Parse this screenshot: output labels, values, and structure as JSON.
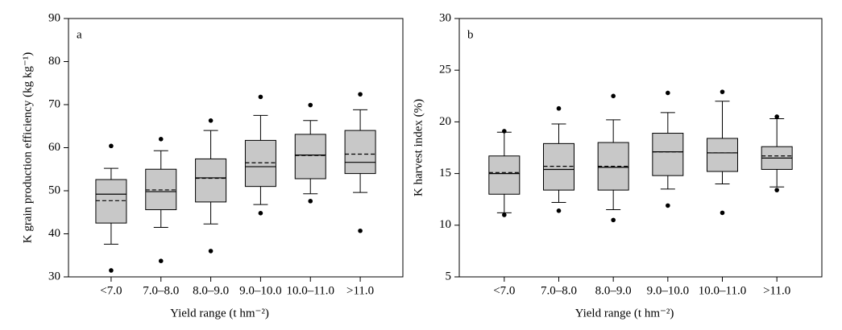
{
  "chart_data": [
    {
      "type": "box",
      "panel_label": "a",
      "ylabel": "K grain production efficiency (kg kg⁻¹)",
      "xlabel": "Yield range (t hm⁻²)",
      "categories": [
        "<7.0",
        "7.0–8.0",
        "8.0–9.0",
        "9.0–10.0",
        "10.0–11.0",
        ">11.0"
      ],
      "ylim": [
        30,
        90
      ],
      "yticks": [
        30,
        40,
        50,
        60,
        70,
        80,
        90
      ],
      "color": "#c8c8c8",
      "boxes": [
        {
          "whisker_low": 37.6,
          "q1": 42.5,
          "median": 49.2,
          "mean": 47.7,
          "q3": 52.6,
          "whisker_high": 55.2,
          "outliers": [
            31.5,
            60.4
          ]
        },
        {
          "whisker_low": 41.5,
          "q1": 45.6,
          "median": 49.8,
          "mean": 50.2,
          "q3": 55.0,
          "whisker_high": 59.3,
          "outliers": [
            33.7,
            62.0
          ]
        },
        {
          "whisker_low": 42.3,
          "q1": 47.4,
          "median": 53.0,
          "mean": 52.9,
          "q3": 57.4,
          "whisker_high": 64.0,
          "outliers": [
            36.0,
            66.3
          ]
        },
        {
          "whisker_low": 46.8,
          "q1": 51.0,
          "median": 55.6,
          "mean": 56.5,
          "q3": 61.7,
          "whisker_high": 67.5,
          "outliers": [
            44.8,
            71.8
          ]
        },
        {
          "whisker_low": 49.3,
          "q1": 52.8,
          "median": 58.3,
          "mean": 58.2,
          "q3": 63.1,
          "whisker_high": 66.3,
          "outliers": [
            47.6,
            69.9
          ]
        },
        {
          "whisker_low": 49.6,
          "q1": 54.0,
          "median": 56.6,
          "mean": 58.5,
          "q3": 64.0,
          "whisker_high": 68.8,
          "outliers": [
            40.7,
            72.4
          ]
        }
      ]
    },
    {
      "type": "box",
      "panel_label": "b",
      "ylabel": "K harvest index (%)",
      "xlabel": "Yield range (t hm⁻²)",
      "categories": [
        "<7.0",
        "7.0–8.0",
        "8.0–9.0",
        "9.0–10.0",
        "10.0–11.0",
        ">11.0"
      ],
      "ylim": [
        5,
        30
      ],
      "yticks": [
        5,
        10,
        15,
        20,
        25,
        30
      ],
      "color": "#c8c8c8",
      "boxes": [
        {
          "whisker_low": 11.2,
          "q1": 13.0,
          "median": 15.0,
          "mean": 15.1,
          "q3": 16.7,
          "whisker_high": 19.0,
          "outliers": [
            11.0,
            19.1
          ]
        },
        {
          "whisker_low": 12.2,
          "q1": 13.4,
          "median": 15.4,
          "mean": 15.7,
          "q3": 17.9,
          "whisker_high": 19.8,
          "outliers": [
            11.4,
            21.3
          ]
        },
        {
          "whisker_low": 11.5,
          "q1": 13.4,
          "median": 15.6,
          "mean": 15.7,
          "q3": 18.0,
          "whisker_high": 20.2,
          "outliers": [
            10.5,
            22.5
          ]
        },
        {
          "whisker_low": 13.5,
          "q1": 14.8,
          "median": 17.1,
          "mean": 17.1,
          "q3": 18.9,
          "whisker_high": 20.9,
          "outliers": [
            11.9,
            22.8
          ]
        },
        {
          "whisker_low": 14.0,
          "q1": 15.2,
          "median": 17.0,
          "mean": 17.0,
          "q3": 18.4,
          "whisker_high": 22.0,
          "outliers": [
            11.2,
            22.9
          ]
        },
        {
          "whisker_low": 13.7,
          "q1": 15.4,
          "median": 16.5,
          "mean": 16.7,
          "q3": 17.6,
          "whisker_high": 20.3,
          "outliers": [
            13.4,
            20.5
          ]
        }
      ]
    }
  ]
}
